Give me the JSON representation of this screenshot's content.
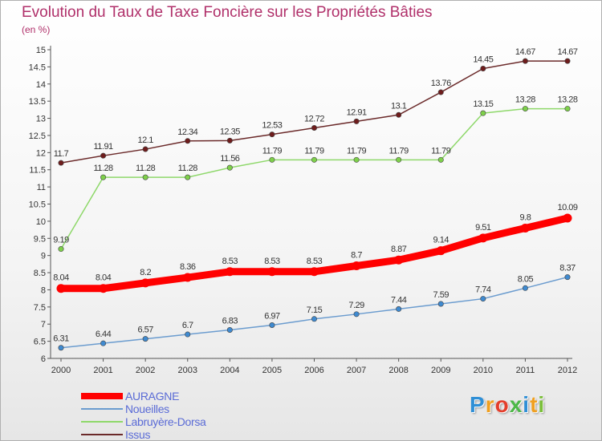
{
  "title": "Evolution du Taux de Taxe Foncière sur les Propriétés Bâties",
  "subtitle": "(en %)",
  "logo": {
    "letters": [
      "P",
      "r",
      "o",
      "x",
      "i",
      "t",
      "i"
    ],
    "colors": [
      "#2f8fd6",
      "#f0a020",
      "#e43e2b",
      "#4db848",
      "#2f8fd6",
      "#f0a020",
      "#7bbf3a"
    ]
  },
  "chart_data": {
    "type": "line",
    "x": [
      "2000",
      "2001",
      "2002",
      "2003",
      "2004",
      "2005",
      "2006",
      "2007",
      "2008",
      "2009",
      "2010",
      "2011",
      "2012"
    ],
    "yticks": [
      "6",
      "6.5",
      "7",
      "7.5",
      "8",
      "8.5",
      "9",
      "9.5",
      "10",
      "10.5",
      "11",
      "11.5",
      "12",
      "12.5",
      "13",
      "13.5",
      "14",
      "14.5",
      "15"
    ],
    "ylim": [
      6,
      15
    ],
    "grid": false,
    "legend_position": "bottom-left",
    "series": [
      {
        "name": "AURAGNE",
        "color": "#ff0000",
        "marker_color": "#ff0000",
        "values": [
          8.04,
          8.04,
          8.2,
          8.36,
          8.53,
          8.53,
          8.53,
          8.7,
          8.87,
          9.14,
          9.51,
          9.8,
          10.09
        ],
        "labels": [
          "8.04",
          "8.04",
          "8.2",
          "8.36",
          "8.53",
          "8.53",
          "8.53",
          "8.7",
          "8.87",
          "9.14",
          "9.51",
          "9.8",
          "10.09"
        ]
      },
      {
        "name": "Noueilles",
        "color": "#6b9ccf",
        "marker_color": "#3f8ad0",
        "values": [
          6.31,
          6.44,
          6.57,
          6.7,
          6.83,
          6.97,
          7.15,
          7.29,
          7.44,
          7.59,
          7.74,
          8.05,
          8.37
        ],
        "labels": [
          "6.31",
          "6.44",
          "6.57",
          "6.7",
          "6.83",
          "6.97",
          "7.15",
          "7.29",
          "7.44",
          "7.59",
          "7.74",
          "8.05",
          "8.37"
        ]
      },
      {
        "name": "Labruyère-Dorsa",
        "color": "#8ed86a",
        "marker_color": "#7ed04a",
        "values": [
          9.19,
          11.28,
          11.28,
          11.28,
          11.56,
          11.79,
          11.79,
          11.79,
          11.79,
          11.79,
          13.15,
          13.28,
          13.28
        ],
        "labels": [
          "9.19",
          "11.28",
          "11.28",
          "11.28",
          "11.56",
          "11.79",
          "11.79",
          "11.79",
          "11.79",
          "11.79",
          "13.15",
          "13.28",
          "13.28"
        ]
      },
      {
        "name": "Issus",
        "color": "#6b2a2a",
        "marker_color": "#6e1c1c",
        "values": [
          11.7,
          11.91,
          12.1,
          12.34,
          12.35,
          12.53,
          12.72,
          12.91,
          13.1,
          13.76,
          14.45,
          14.67,
          14.67
        ],
        "labels": [
          "11.7",
          "11.91",
          "12.1",
          "12.34",
          "12.35",
          "12.53",
          "12.72",
          "12.91",
          "13.1",
          "13.76",
          "14.45",
          "14.67",
          "14.67"
        ]
      }
    ]
  }
}
